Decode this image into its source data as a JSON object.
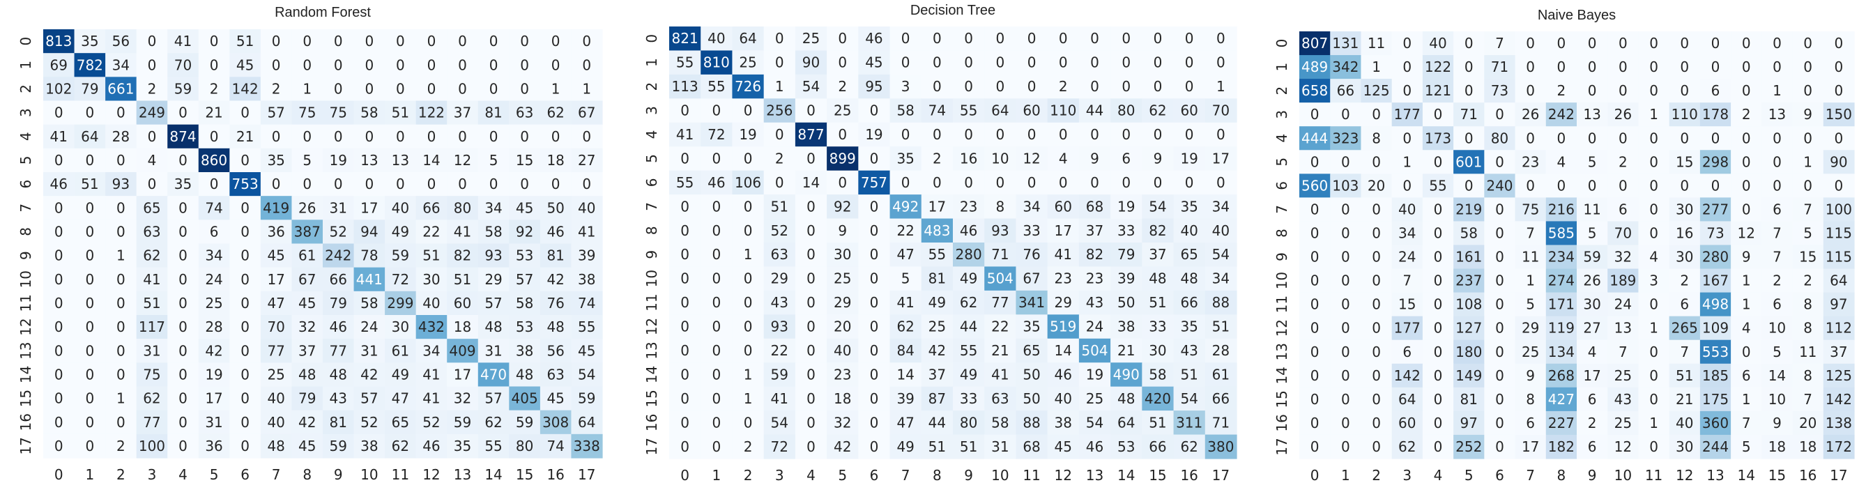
{
  "chart_data": [
    {
      "type": "heatmap",
      "title": "Random Forest",
      "row_labels": [
        "0",
        "1",
        "2",
        "3",
        "4",
        "5",
        "6",
        "7",
        "8",
        "9",
        "10",
        "11",
        "12",
        "13",
        "14",
        "15",
        "16",
        "17"
      ],
      "col_labels": [
        "0",
        "1",
        "2",
        "3",
        "4",
        "5",
        "6",
        "7",
        "8",
        "9",
        "10",
        "11",
        "12",
        "13",
        "14",
        "15",
        "16",
        "17"
      ],
      "grid": false,
      "colorbar": false,
      "values": [
        [
          813,
          35,
          56,
          0,
          41,
          0,
          51,
          0,
          0,
          0,
          0,
          0,
          0,
          0,
          0,
          0,
          0,
          0
        ],
        [
          69,
          782,
          34,
          0,
          70,
          0,
          45,
          0,
          0,
          0,
          0,
          0,
          0,
          0,
          0,
          0,
          0,
          0
        ],
        [
          102,
          79,
          661,
          2,
          59,
          2,
          142,
          2,
          1,
          0,
          0,
          0,
          0,
          0,
          0,
          0,
          1,
          1
        ],
        [
          0,
          0,
          0,
          249,
          0,
          21,
          0,
          57,
          75,
          75,
          58,
          51,
          122,
          37,
          81,
          63,
          62,
          67
        ],
        [
          41,
          64,
          28,
          0,
          874,
          0,
          21,
          0,
          0,
          0,
          0,
          0,
          0,
          0,
          0,
          0,
          0,
          0
        ],
        [
          0,
          0,
          0,
          4,
          0,
          860,
          0,
          35,
          5,
          19,
          13,
          13,
          14,
          12,
          5,
          15,
          18,
          27
        ],
        [
          46,
          51,
          93,
          0,
          35,
          0,
          753,
          0,
          0,
          0,
          0,
          0,
          0,
          0,
          0,
          0,
          0,
          0
        ],
        [
          0,
          0,
          0,
          65,
          0,
          74,
          0,
          419,
          26,
          31,
          17,
          40,
          66,
          80,
          34,
          45,
          50,
          40
        ],
        [
          0,
          0,
          0,
          63,
          0,
          6,
          0,
          36,
          387,
          52,
          94,
          49,
          22,
          41,
          58,
          92,
          46,
          41
        ],
        [
          0,
          0,
          1,
          62,
          0,
          34,
          0,
          45,
          61,
          242,
          78,
          59,
          51,
          82,
          93,
          53,
          81,
          39
        ],
        [
          0,
          0,
          0,
          41,
          0,
          24,
          0,
          17,
          67,
          66,
          441,
          72,
          30,
          51,
          29,
          57,
          42,
          38
        ],
        [
          0,
          0,
          0,
          51,
          0,
          25,
          0,
          47,
          45,
          79,
          58,
          299,
          40,
          60,
          57,
          58,
          76,
          74
        ],
        [
          0,
          0,
          0,
          117,
          0,
          28,
          0,
          70,
          32,
          46,
          24,
          30,
          432,
          18,
          48,
          53,
          48,
          55
        ],
        [
          0,
          0,
          0,
          31,
          0,
          42,
          0,
          77,
          37,
          77,
          31,
          61,
          34,
          409,
          31,
          38,
          56,
          45
        ],
        [
          0,
          0,
          0,
          75,
          0,
          19,
          0,
          25,
          48,
          48,
          42,
          49,
          41,
          17,
          470,
          48,
          63,
          54
        ],
        [
          0,
          0,
          1,
          62,
          0,
          17,
          0,
          40,
          79,
          43,
          57,
          47,
          41,
          32,
          57,
          405,
          45,
          59
        ],
        [
          0,
          0,
          0,
          77,
          0,
          31,
          0,
          40,
          42,
          81,
          52,
          65,
          52,
          59,
          62,
          59,
          308,
          64
        ],
        [
          0,
          0,
          2,
          100,
          0,
          36,
          0,
          48,
          45,
          59,
          38,
          62,
          46,
          35,
          55,
          80,
          74,
          338
        ]
      ]
    },
    {
      "type": "heatmap",
      "title": "Decision Tree",
      "row_labels": [
        "0",
        "1",
        "2",
        "3",
        "4",
        "5",
        "6",
        "7",
        "8",
        "9",
        "10",
        "11",
        "12",
        "13",
        "14",
        "15",
        "16",
        "17"
      ],
      "col_labels": [
        "0",
        "1",
        "2",
        "3",
        "4",
        "5",
        "6",
        "7",
        "8",
        "9",
        "10",
        "11",
        "12",
        "13",
        "14",
        "15",
        "16",
        "17"
      ],
      "grid": false,
      "colorbar": false,
      "values": [
        [
          821,
          40,
          64,
          0,
          25,
          0,
          46,
          0,
          0,
          0,
          0,
          0,
          0,
          0,
          0,
          0,
          0,
          0
        ],
        [
          55,
          810,
          25,
          0,
          90,
          0,
          45,
          0,
          0,
          0,
          0,
          0,
          0,
          0,
          0,
          0,
          0,
          0
        ],
        [
          113,
          55,
          726,
          1,
          54,
          2,
          95,
          3,
          0,
          0,
          0,
          0,
          2,
          0,
          0,
          0,
          0,
          1
        ],
        [
          0,
          0,
          0,
          256,
          0,
          25,
          0,
          58,
          74,
          55,
          64,
          60,
          110,
          44,
          80,
          62,
          60,
          70
        ],
        [
          41,
          72,
          19,
          0,
          877,
          0,
          19,
          0,
          0,
          0,
          0,
          0,
          0,
          0,
          0,
          0,
          0,
          0
        ],
        [
          0,
          0,
          0,
          2,
          0,
          899,
          0,
          35,
          2,
          16,
          10,
          12,
          4,
          9,
          6,
          9,
          19,
          17
        ],
        [
          55,
          46,
          106,
          0,
          14,
          0,
          757,
          0,
          0,
          0,
          0,
          0,
          0,
          0,
          0,
          0,
          0,
          0
        ],
        [
          0,
          0,
          0,
          51,
          0,
          92,
          0,
          492,
          17,
          23,
          8,
          34,
          60,
          68,
          19,
          54,
          35,
          34
        ],
        [
          0,
          0,
          0,
          52,
          0,
          9,
          0,
          22,
          483,
          46,
          93,
          33,
          17,
          37,
          33,
          82,
          40,
          40
        ],
        [
          0,
          0,
          1,
          63,
          0,
          30,
          0,
          47,
          55,
          280,
          71,
          76,
          41,
          82,
          79,
          37,
          65,
          54
        ],
        [
          0,
          0,
          0,
          29,
          0,
          25,
          0,
          5,
          81,
          49,
          504,
          67,
          23,
          23,
          39,
          48,
          48,
          34
        ],
        [
          0,
          0,
          0,
          43,
          0,
          29,
          0,
          41,
          49,
          62,
          77,
          341,
          29,
          43,
          50,
          51,
          66,
          88
        ],
        [
          0,
          0,
          0,
          93,
          0,
          20,
          0,
          62,
          25,
          44,
          22,
          35,
          519,
          24,
          38,
          33,
          35,
          51
        ],
        [
          0,
          0,
          0,
          22,
          0,
          40,
          0,
          84,
          42,
          55,
          21,
          65,
          14,
          504,
          21,
          30,
          43,
          28
        ],
        [
          0,
          0,
          1,
          59,
          0,
          23,
          0,
          14,
          37,
          49,
          41,
          50,
          46,
          19,
          490,
          58,
          51,
          61
        ],
        [
          0,
          0,
          1,
          41,
          0,
          18,
          0,
          39,
          87,
          33,
          63,
          50,
          40,
          25,
          48,
          420,
          54,
          66
        ],
        [
          0,
          0,
          0,
          54,
          0,
          32,
          0,
          47,
          44,
          80,
          58,
          88,
          38,
          54,
          64,
          51,
          311,
          71
        ],
        [
          0,
          0,
          2,
          72,
          0,
          42,
          0,
          49,
          51,
          51,
          31,
          68,
          45,
          46,
          53,
          66,
          62,
          380
        ]
      ]
    },
    {
      "type": "heatmap",
      "title": "Naive Bayes",
      "row_labels": [
        "0",
        "1",
        "2",
        "3",
        "4",
        "5",
        "6",
        "7",
        "8",
        "9",
        "10",
        "11",
        "12",
        "13",
        "14",
        "15",
        "16",
        "17"
      ],
      "col_labels": [
        "0",
        "1",
        "2",
        "3",
        "4",
        "5",
        "6",
        "7",
        "8",
        "9",
        "10",
        "11",
        "12",
        "13",
        "14",
        "15",
        "16",
        "17"
      ],
      "grid": false,
      "colorbar": false,
      "values": [
        [
          807,
          131,
          11,
          0,
          40,
          0,
          7,
          0,
          0,
          0,
          0,
          0,
          0,
          0,
          0,
          0,
          0,
          0
        ],
        [
          489,
          342,
          1,
          0,
          122,
          0,
          71,
          0,
          0,
          0,
          0,
          0,
          0,
          0,
          0,
          0,
          0,
          0
        ],
        [
          658,
          66,
          125,
          0,
          121,
          0,
          73,
          0,
          2,
          0,
          0,
          0,
          0,
          6,
          0,
          1,
          0,
          0
        ],
        [
          0,
          0,
          0,
          177,
          0,
          71,
          0,
          26,
          242,
          13,
          26,
          1,
          110,
          178,
          2,
          13,
          9,
          150
        ],
        [
          444,
          323,
          8,
          0,
          173,
          0,
          80,
          0,
          0,
          0,
          0,
          0,
          0,
          0,
          0,
          0,
          0,
          0
        ],
        [
          0,
          0,
          0,
          1,
          0,
          601,
          0,
          23,
          4,
          5,
          2,
          0,
          15,
          298,
          0,
          0,
          1,
          90
        ],
        [
          560,
          103,
          20,
          0,
          55,
          0,
          240,
          0,
          0,
          0,
          0,
          0,
          0,
          0,
          0,
          0,
          0,
          0
        ],
        [
          0,
          0,
          0,
          40,
          0,
          219,
          0,
          75,
          216,
          11,
          6,
          0,
          30,
          277,
          0,
          6,
          7,
          100
        ],
        [
          0,
          0,
          0,
          34,
          0,
          58,
          0,
          7,
          585,
          5,
          70,
          0,
          16,
          73,
          12,
          7,
          5,
          115
        ],
        [
          0,
          0,
          0,
          24,
          0,
          161,
          0,
          11,
          234,
          59,
          32,
          4,
          30,
          280,
          9,
          7,
          15,
          115
        ],
        [
          0,
          0,
          0,
          7,
          0,
          237,
          0,
          1,
          274,
          26,
          189,
          3,
          2,
          167,
          1,
          2,
          2,
          64
        ],
        [
          0,
          0,
          0,
          15,
          0,
          108,
          0,
          5,
          171,
          30,
          24,
          0,
          6,
          498,
          1,
          6,
          8,
          97
        ],
        [
          0,
          0,
          0,
          177,
          0,
          127,
          0,
          29,
          119,
          27,
          13,
          1,
          265,
          109,
          4,
          10,
          8,
          112
        ],
        [
          0,
          0,
          0,
          6,
          0,
          180,
          0,
          25,
          134,
          4,
          7,
          0,
          7,
          553,
          0,
          5,
          11,
          37
        ],
        [
          0,
          0,
          0,
          142,
          0,
          149,
          0,
          9,
          268,
          17,
          25,
          0,
          51,
          185,
          6,
          14,
          8,
          125
        ],
        [
          0,
          0,
          0,
          64,
          0,
          81,
          0,
          8,
          427,
          6,
          43,
          0,
          21,
          175,
          1,
          10,
          7,
          142
        ],
        [
          0,
          0,
          0,
          60,
          0,
          97,
          0,
          6,
          227,
          2,
          25,
          1,
          40,
          360,
          7,
          9,
          20,
          138
        ],
        [
          0,
          0,
          0,
          62,
          0,
          252,
          0,
          17,
          182,
          6,
          12,
          0,
          30,
          244,
          5,
          18,
          18,
          172
        ]
      ]
    }
  ]
}
